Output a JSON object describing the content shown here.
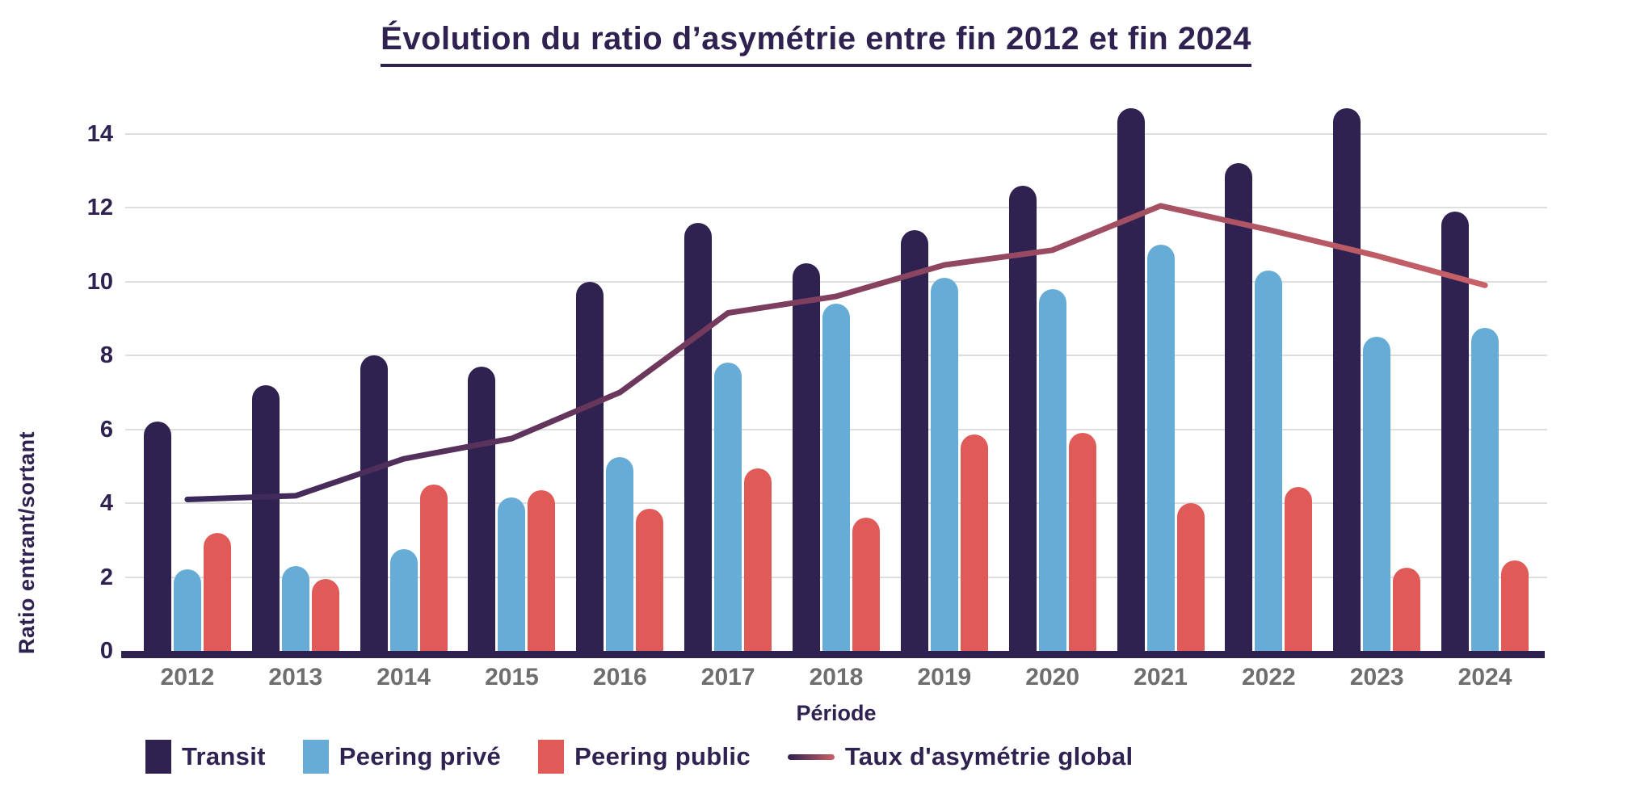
{
  "title": "Évolution du ratio d’asymétrie entre fin 2012 et fin 2024",
  "y_axis": {
    "label": "Ratio entrant/sortant",
    "ticks": [
      0,
      2,
      4,
      6,
      8,
      10,
      12,
      14
    ],
    "max": 15
  },
  "x_axis": {
    "label": "Période"
  },
  "colors": {
    "transit": "#2F2150",
    "peering_prive": "#67ACD6",
    "peering_public": "#E05A57",
    "line_gradient": [
      "#38275A",
      "#7C3D5E",
      "#C96168"
    ],
    "axis": "#2F2150",
    "year_labels": "#6E6E6E",
    "gridline": "#DEDEDE"
  },
  "legend": {
    "items": [
      {
        "label": "Transit",
        "marker": "square",
        "color": "#2F2150"
      },
      {
        "label": "Peering privé",
        "marker": "square",
        "color": "#67ACD6"
      },
      {
        "label": "Peering public",
        "marker": "square",
        "color": "#E05A57"
      },
      {
        "label": "Taux d'asymétrie global",
        "marker": "line",
        "color": "gradient"
      }
    ]
  },
  "chart_data": {
    "type": "bar",
    "title": "Évolution du ratio d’asymétrie entre fin 2012 et fin 2024",
    "xlabel": "Période",
    "ylabel": "Ratio entrant/sortant",
    "ylim": [
      0,
      15
    ],
    "grid": "horizontal",
    "legend_position": "bottom",
    "categories": [
      "2012",
      "2013",
      "2014",
      "2015",
      "2016",
      "2017",
      "2018",
      "2019",
      "2020",
      "2021",
      "2022",
      "2023",
      "2024"
    ],
    "series": [
      {
        "name": "Transit",
        "type": "bar",
        "color": "#2F2150",
        "values": [
          6.2,
          7.2,
          8.0,
          7.7,
          10.0,
          11.6,
          10.5,
          11.4,
          12.6,
          14.7,
          13.2,
          14.7,
          11.9
        ]
      },
      {
        "name": "Peering privé",
        "type": "bar",
        "color": "#67ACD6",
        "values": [
          2.2,
          2.3,
          2.75,
          4.15,
          5.25,
          7.8,
          9.4,
          10.1,
          9.8,
          11.0,
          10.3,
          8.5,
          8.75
        ]
      },
      {
        "name": "Peering public",
        "type": "bar",
        "color": "#E05A57",
        "values": [
          3.2,
          1.95,
          4.5,
          4.35,
          3.85,
          4.95,
          3.6,
          5.85,
          5.9,
          4.0,
          4.45,
          2.25,
          2.45
        ]
      },
      {
        "name": "Taux d'asymétrie global",
        "type": "line",
        "color": "gradient(#38275A→#C96168)",
        "values": [
          4.1,
          4.2,
          5.2,
          5.75,
          7.0,
          9.15,
          9.6,
          10.45,
          10.85,
          12.05,
          11.4,
          10.7,
          9.9
        ]
      }
    ]
  }
}
